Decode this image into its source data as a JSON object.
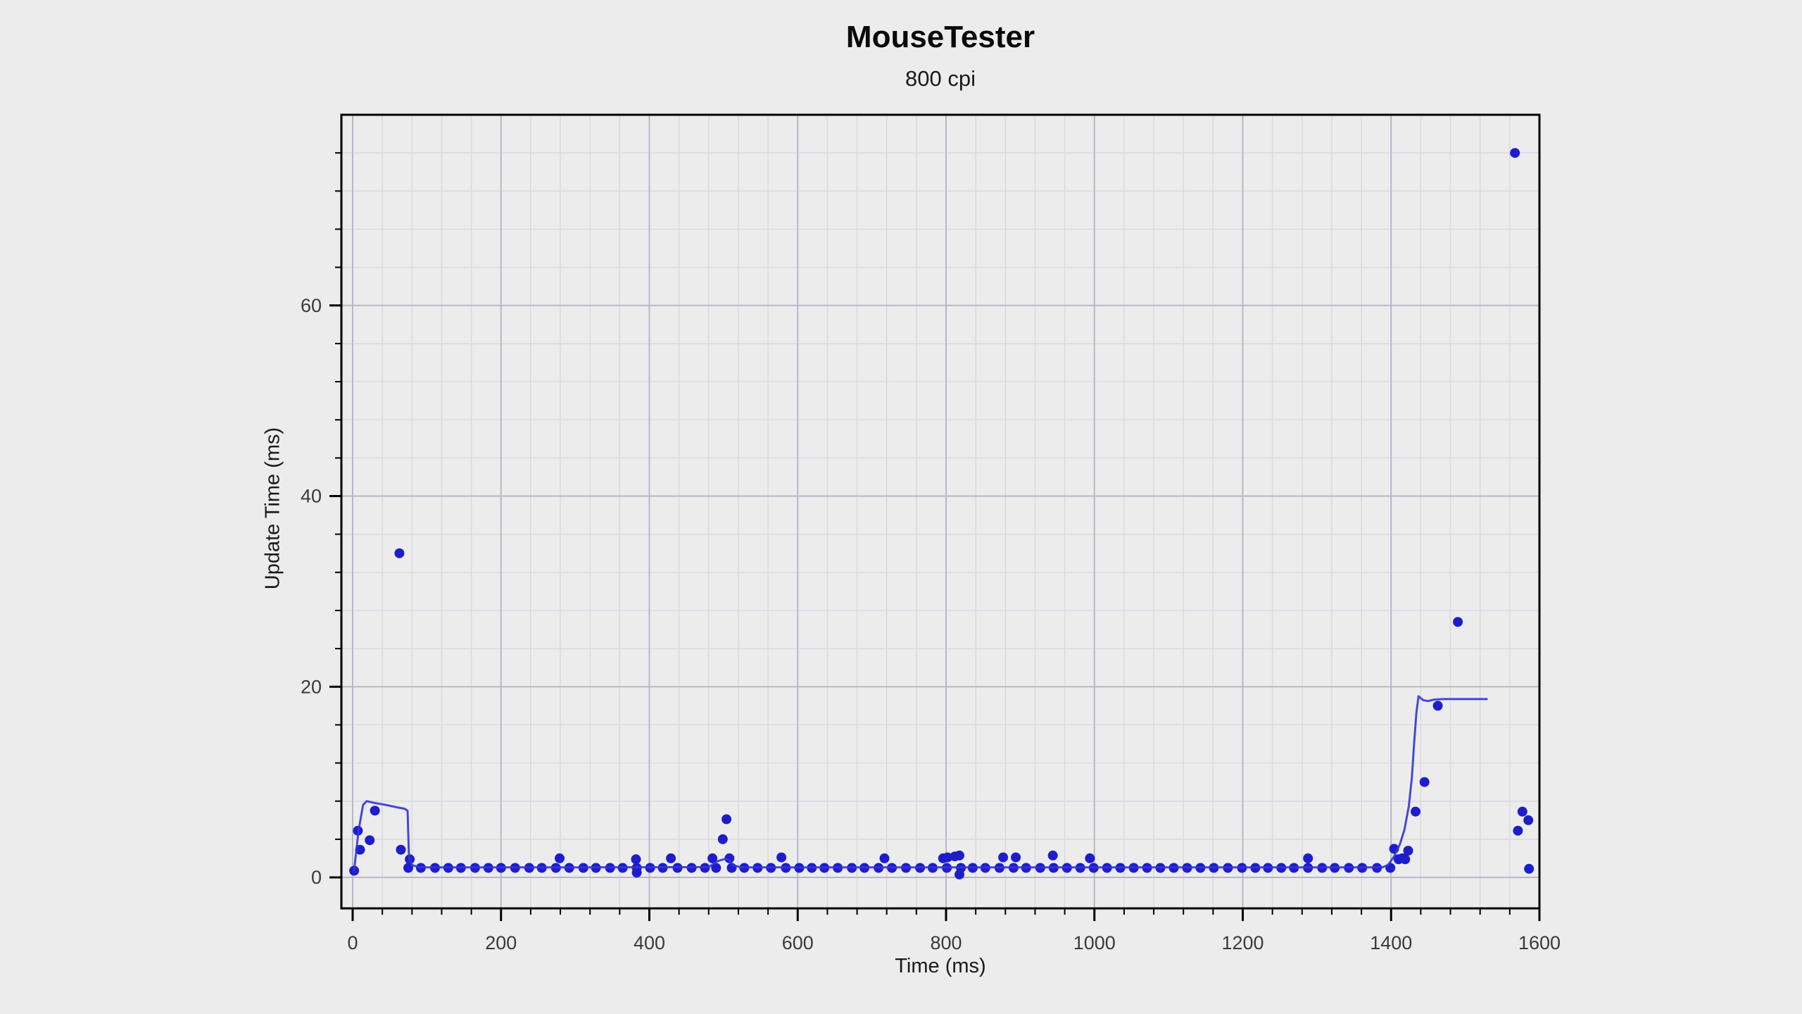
{
  "chart_data": {
    "type": "scatter",
    "title": "MouseTester",
    "subtitle": "800 cpi",
    "xlabel": "Time (ms)",
    "ylabel": "Update Time (ms)",
    "xlim": [
      0,
      1600
    ],
    "ylim": [
      0,
      80
    ],
    "x_ticks": {
      "major": [
        0,
        200,
        400,
        600,
        800,
        1000,
        1200,
        1400,
        1600
      ],
      "minor_step": 40
    },
    "y_ticks": {
      "major": [
        0,
        20,
        40,
        60
      ],
      "minor_step": 4
    },
    "grid": "on",
    "legend": "none",
    "series": [
      {
        "name": "update-time-points",
        "type": "scatter",
        "color": "#1d1dce",
        "points": [
          [
            2,
            0.7
          ],
          [
            7,
            4.9
          ],
          [
            10,
            2.9
          ],
          [
            23,
            3.9
          ],
          [
            30,
            7
          ],
          [
            63,
            34
          ],
          [
            65,
            2.9
          ],
          [
            75,
            1
          ],
          [
            77,
            1.9
          ],
          [
            92,
            1
          ],
          [
            111,
            1
          ],
          [
            129,
            1
          ],
          [
            146,
            1
          ],
          [
            165,
            1
          ],
          [
            183,
            1
          ],
          [
            200,
            1
          ],
          [
            219,
            1
          ],
          [
            238,
            1
          ],
          [
            255,
            1
          ],
          [
            274,
            1
          ],
          [
            279,
            2
          ],
          [
            292,
            1
          ],
          [
            311,
            1
          ],
          [
            328,
            1
          ],
          [
            347,
            1
          ],
          [
            364,
            1
          ],
          [
            382,
            1.9
          ],
          [
            383,
            0.5
          ],
          [
            383,
            1
          ],
          [
            401,
            1
          ],
          [
            418,
            1
          ],
          [
            429,
            2
          ],
          [
            438,
            1
          ],
          [
            457,
            1
          ],
          [
            475,
            1
          ],
          [
            485,
            2
          ],
          [
            490,
            1
          ],
          [
            499,
            4
          ],
          [
            504,
            6.1
          ],
          [
            508,
            2
          ],
          [
            511,
            1
          ],
          [
            528,
            1
          ],
          [
            546,
            1
          ],
          [
            564,
            1
          ],
          [
            578,
            2.1
          ],
          [
            584,
            1
          ],
          [
            602,
            1
          ],
          [
            619,
            1
          ],
          [
            636,
            1
          ],
          [
            654,
            1
          ],
          [
            673,
            1
          ],
          [
            690,
            1
          ],
          [
            709,
            1
          ],
          [
            717,
            2
          ],
          [
            727,
            1
          ],
          [
            746,
            1
          ],
          [
            765,
            1
          ],
          [
            782,
            1
          ],
          [
            796,
            2
          ],
          [
            801,
            1
          ],
          [
            802,
            2.1
          ],
          [
            812,
            2.2
          ],
          [
            818,
            2.3
          ],
          [
            818,
            0.3
          ],
          [
            820,
            1
          ],
          [
            836,
            1
          ],
          [
            853,
            1
          ],
          [
            872,
            1
          ],
          [
            877,
            2.1
          ],
          [
            891,
            1
          ],
          [
            894,
            2.1
          ],
          [
            908,
            1
          ],
          [
            927,
            1
          ],
          [
            944,
            2.3
          ],
          [
            945,
            1
          ],
          [
            963,
            1
          ],
          [
            981,
            1
          ],
          [
            994,
            2
          ],
          [
            999,
            1
          ],
          [
            1017,
            1
          ],
          [
            1035,
            1
          ],
          [
            1053,
            1
          ],
          [
            1071,
            1
          ],
          [
            1089,
            1
          ],
          [
            1107,
            1
          ],
          [
            1125,
            1
          ],
          [
            1143,
            1
          ],
          [
            1161,
            1
          ],
          [
            1180,
            1
          ],
          [
            1199,
            1
          ],
          [
            1217,
            1
          ],
          [
            1234,
            1
          ],
          [
            1252,
            1
          ],
          [
            1269,
            1
          ],
          [
            1288,
            1
          ],
          [
            1288,
            2
          ],
          [
            1307,
            1
          ],
          [
            1324,
            1
          ],
          [
            1343,
            1
          ],
          [
            1361,
            1
          ],
          [
            1381,
            1
          ],
          [
            1399,
            1
          ],
          [
            1404,
            3
          ],
          [
            1410,
            1.9
          ],
          [
            1415,
            2
          ],
          [
            1419,
            1.9
          ],
          [
            1423,
            2.8
          ],
          [
            1433,
            6.9
          ],
          [
            1445,
            10
          ],
          [
            1463,
            18
          ],
          [
            1490,
            26.8
          ],
          [
            1567,
            76
          ],
          [
            1571,
            4.9
          ],
          [
            1577,
            6.9
          ],
          [
            1585,
            6
          ],
          [
            1586,
            0.9
          ]
        ]
      },
      {
        "name": "smoothed-average-line",
        "type": "line",
        "color": "#3535d6",
        "points": [
          [
            2,
            0.75
          ],
          [
            8,
            4.9
          ],
          [
            14,
            7.6
          ],
          [
            19,
            8
          ],
          [
            30,
            7.8
          ],
          [
            45,
            7.6
          ],
          [
            60,
            7.35
          ],
          [
            70,
            7.2
          ],
          [
            74,
            7
          ],
          [
            76,
            2
          ],
          [
            80,
            1.3
          ],
          [
            90,
            1.05
          ],
          [
            300,
            1.05
          ],
          [
            480,
            1.08
          ],
          [
            492,
            1.7
          ],
          [
            500,
            1.9
          ],
          [
            506,
            1.9
          ],
          [
            514,
            1.25
          ],
          [
            524,
            1.05
          ],
          [
            1000,
            1.05
          ],
          [
            1388,
            1.05
          ],
          [
            1396,
            1.3
          ],
          [
            1404,
            2.2
          ],
          [
            1412,
            3.5
          ],
          [
            1418,
            5
          ],
          [
            1424,
            7.5
          ],
          [
            1428,
            10.5
          ],
          [
            1431,
            14
          ],
          [
            1434,
            17.2
          ],
          [
            1437,
            19
          ],
          [
            1443,
            18.6
          ],
          [
            1450,
            18.5
          ],
          [
            1458,
            18.65
          ],
          [
            1470,
            18.7
          ],
          [
            1529,
            18.7
          ]
        ]
      }
    ]
  },
  "colors": {
    "background": "#ececec",
    "plot_frame": "#000000",
    "grid_minor": "#d9d9e4",
    "grid_major": "#b7b7c7",
    "tick_label": "#3a3a3a",
    "point_blue": "#1d1dce",
    "line_blue": "#3535d6"
  }
}
